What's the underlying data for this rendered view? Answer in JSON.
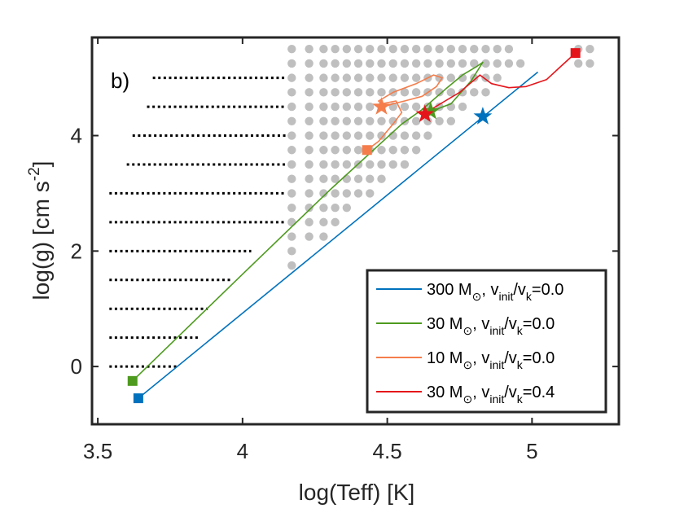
{
  "chart_data": {
    "type": "scatter",
    "panel_label": "b)",
    "xlabel": "log(Teff) [K]",
    "ylabel": {
      "base": "log(g) [cm s",
      "sup": "-2",
      "end": "]"
    },
    "xlim": [
      3.48,
      5.3
    ],
    "ylim": [
      -1,
      5.7
    ],
    "x_ticks": [
      {
        "value": 3.5,
        "label": "3.5"
      },
      {
        "value": 4,
        "label": "4"
      },
      {
        "value": 4.5,
        "label": "4.5"
      },
      {
        "value": 5,
        "label": "5"
      }
    ],
    "y_ticks": [
      {
        "value": 0,
        "label": "0"
      },
      {
        "value": 2,
        "label": "2"
      },
      {
        "value": 4,
        "label": "4"
      }
    ],
    "grid": false,
    "legend_position": "bottom-right",
    "colors": {
      "m300": "#0072bd",
      "m30": "#4d9a1e",
      "m10": "#f47d4b",
      "m30rot": "#e5141a",
      "dots": "#bfbfbf",
      "black_dots": "#000000"
    },
    "black_dot_rows": [
      {
        "y": 5.0,
        "x_start": 3.69,
        "x_end": 4.15
      },
      {
        "y": 4.5,
        "x_start": 3.67,
        "x_end": 4.15
      },
      {
        "y": 4.0,
        "x_start": 3.62,
        "x_end": 4.15
      },
      {
        "y": 3.5,
        "x_start": 3.6,
        "x_end": 4.15
      },
      {
        "y": 3.0,
        "x_start": 3.54,
        "x_end": 4.15
      },
      {
        "y": 2.5,
        "x_start": 3.54,
        "x_end": 4.15
      },
      {
        "y": 2.0,
        "x_start": 3.54,
        "x_end": 4.03
      },
      {
        "y": 1.5,
        "x_start": 3.54,
        "x_end": 3.96
      },
      {
        "y": 1.0,
        "x_start": 3.54,
        "x_end": 3.88
      },
      {
        "y": 0.5,
        "x_start": 3.54,
        "x_end": 3.85
      },
      {
        "y": 0.0,
        "x_start": 3.54,
        "x_end": 3.78
      }
    ],
    "grey_grid": {
      "x_values": [
        4.17,
        4.23,
        4.28,
        4.32,
        4.36,
        4.4,
        4.44,
        4.48,
        4.52,
        4.56,
        4.6,
        4.64,
        4.68,
        4.72,
        4.76,
        4.8,
        4.84,
        4.88,
        4.92,
        4.96,
        5.0,
        5.04,
        5.08,
        5.12
      ],
      "y_step": 0.25,
      "top": 5.5,
      "upper_right_top": 5.25,
      "upper_right_x_from": 4.94,
      "lower_boundary_slope": 4.42,
      "lower_boundary_x0": 4.17,
      "lower_boundary_y0": 1.75
    },
    "series": [
      {
        "name": "300 M⊙, vinit/vk=0.0",
        "color": "#0072bd",
        "x": [
          3.64,
          5.02
        ],
        "y": [
          -0.55,
          5.1
        ],
        "start": {
          "x": 3.64,
          "y": -0.55
        },
        "star": {
          "x": 4.83,
          "y": 4.33
        }
      },
      {
        "name": "30 M⊙, vinit/vk=0.0",
        "color": "#4d9a1e",
        "x": [
          3.62,
          4.0,
          4.3,
          4.55,
          4.62,
          4.7,
          4.76,
          4.81,
          4.83,
          4.79,
          4.72,
          4.65
        ],
        "y": [
          -0.25,
          1.6,
          3.05,
          4.2,
          4.45,
          4.8,
          5.05,
          5.2,
          5.27,
          4.95,
          4.55,
          4.42
        ],
        "start": {
          "x": 3.62,
          "y": -0.25
        },
        "star": {
          "x": 4.65,
          "y": 4.42
        }
      },
      {
        "name": "10 M⊙, vinit/vk=0.0",
        "color": "#f47d4b",
        "x": [
          4.43,
          4.47,
          4.52,
          4.55,
          4.53,
          4.48,
          4.47,
          4.52,
          4.6,
          4.66,
          4.69,
          4.67,
          4.62,
          4.56,
          4.52,
          4.5,
          4.48
        ],
        "y": [
          3.75,
          3.9,
          4.2,
          4.4,
          4.6,
          4.55,
          4.6,
          4.75,
          4.9,
          5.05,
          5.0,
          4.85,
          4.68,
          4.6,
          4.55,
          4.52,
          4.5
        ],
        "start": {
          "x": 4.43,
          "y": 3.75
        },
        "star": {
          "x": 4.48,
          "y": 4.5
        }
      },
      {
        "name": "30 M⊙, vinit/vk=0.4",
        "color": "#e5141a",
        "x": [
          5.15,
          5.1,
          5.05,
          4.98,
          4.92,
          4.86,
          4.82,
          4.79,
          4.75,
          4.7,
          4.66,
          4.63
        ],
        "y": [
          5.43,
          5.2,
          4.97,
          4.85,
          4.83,
          4.9,
          5.05,
          4.92,
          4.75,
          4.6,
          4.48,
          4.37
        ],
        "start": {
          "x": 5.15,
          "y": 5.43
        },
        "star": {
          "x": 4.63,
          "y": 4.37
        }
      }
    ],
    "legend": [
      {
        "mass": "300 M",
        "sub_sym": "⊙",
        "mid": ", v",
        "sub1": "init",
        "slash": "/v",
        "sub2": "k",
        "end": "=0.0",
        "color": "#0072bd"
      },
      {
        "mass": "30 M",
        "sub_sym": "⊙",
        "mid": ", v",
        "sub1": "init",
        "slash": "/v",
        "sub2": "k",
        "end": "=0.0",
        "color": "#4d9a1e"
      },
      {
        "mass": "10 M",
        "sub_sym": "⊙",
        "mid": ", v",
        "sub1": "init",
        "slash": "/v",
        "sub2": "k",
        "end": "=0.0",
        "color": "#f47d4b"
      },
      {
        "mass": "30 M",
        "sub_sym": "⊙",
        "mid": ", v",
        "sub1": "init",
        "slash": "/v",
        "sub2": "k",
        "end": "=0.4",
        "color": "#e5141a"
      }
    ]
  }
}
